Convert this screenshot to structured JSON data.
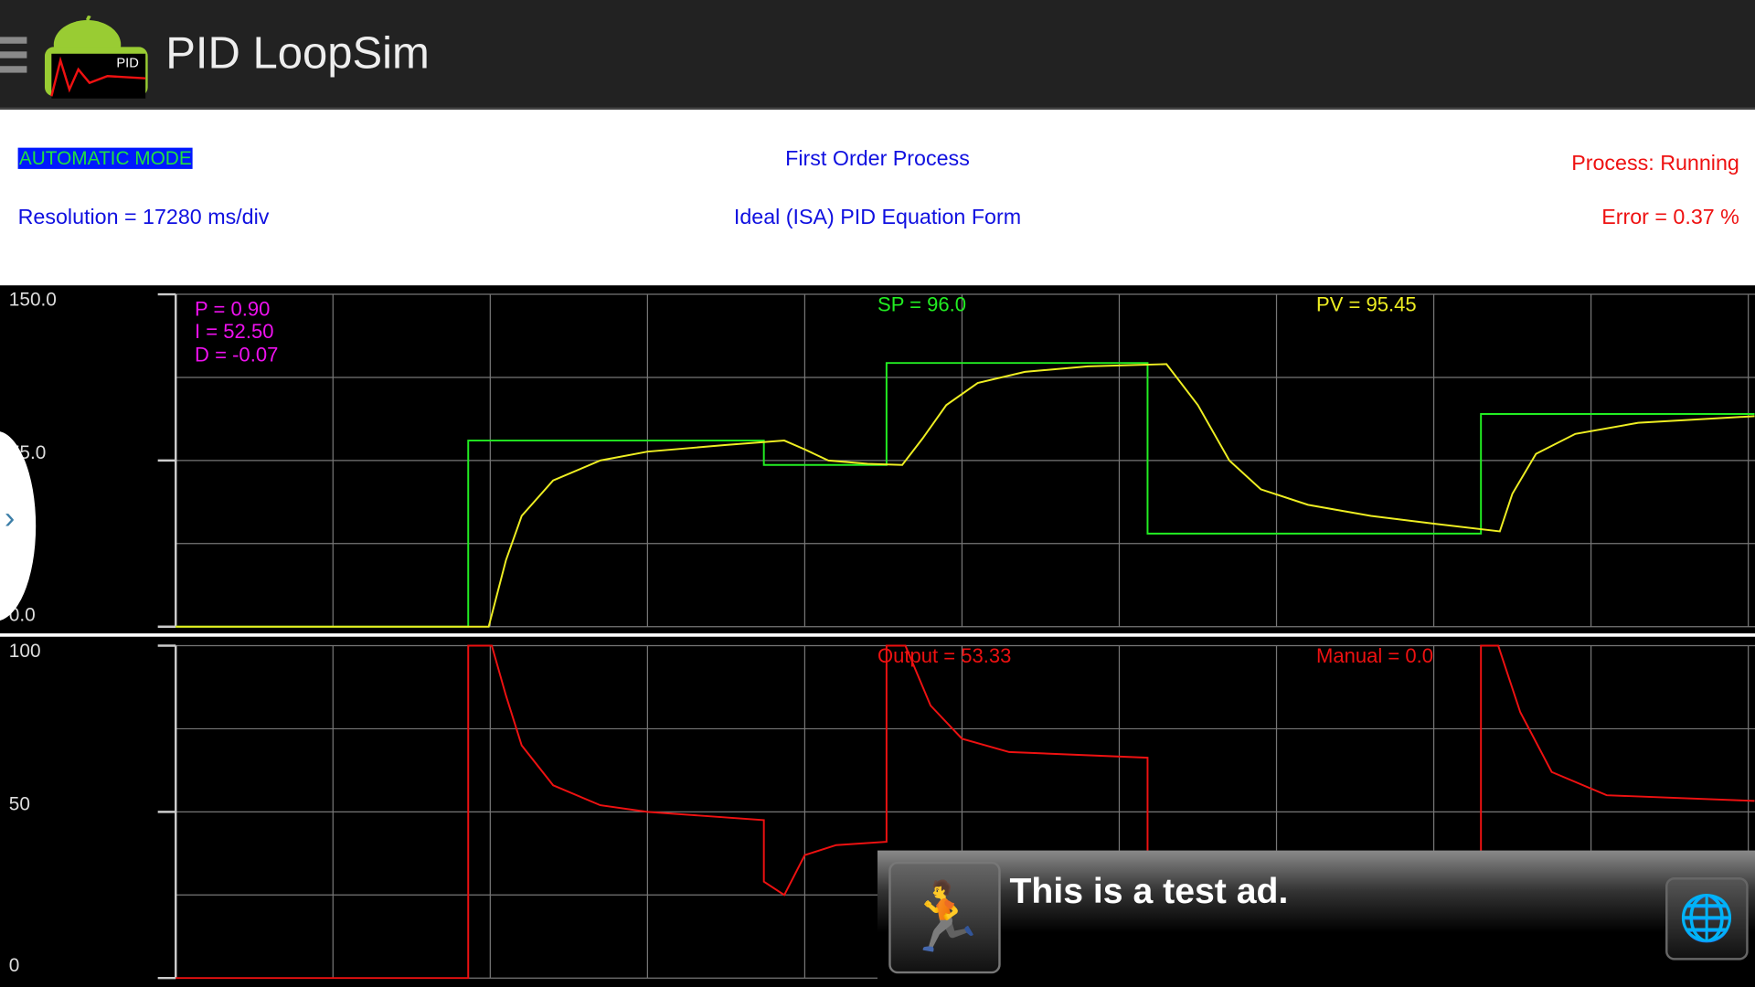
{
  "header": {
    "title": "PID LoopSim",
    "logo_text": "PID"
  },
  "info": {
    "mode": "AUTOMATIC MODE",
    "process_type": "First Order Process",
    "status": "Process: Running",
    "resolution": "Resolution = 17280 ms/div",
    "equation": "Ideal (ISA) PID Equation Form",
    "error": "Error = 0.37 %"
  },
  "tuning": {
    "p": "P = 0.90",
    "i": "I = 52.50",
    "d": "D = -0.07"
  },
  "readouts": {
    "sp": "SP = 96.0",
    "pv": "PV = 95.45",
    "output": "Output = 53.33",
    "manual": "Manual = 0.0"
  },
  "ad": {
    "text": "This is a test ad."
  },
  "colors": {
    "sp": "#22ee22",
    "pv": "#eeee22",
    "output": "#ee1111",
    "tuning": "#ee11ee",
    "grid": "#777777"
  },
  "chart_data": [
    {
      "type": "line",
      "ylim": [
        0,
        150
      ],
      "xlim": [
        0,
        10
      ],
      "x_divisions": 10,
      "y_ticks": [
        "150.0",
        "75.0",
        "0.0"
      ],
      "grid": true,
      "series": [
        {
          "name": "SP",
          "points": [
            [
              0,
              0
            ],
            [
              1.86,
              0
            ],
            [
              1.86,
              84
            ],
            [
              3.74,
              84
            ],
            [
              3.74,
              73
            ],
            [
              4.52,
              73
            ],
            [
              4.52,
              119
            ],
            [
              6.18,
              119
            ],
            [
              6.18,
              42
            ],
            [
              8.3,
              42
            ],
            [
              8.3,
              96
            ],
            [
              10.04,
              96
            ]
          ]
        },
        {
          "name": "PV",
          "points": [
            [
              0,
              0
            ],
            [
              1.99,
              0
            ],
            [
              2.1,
              30
            ],
            [
              2.2,
              50
            ],
            [
              2.4,
              66
            ],
            [
              2.7,
              75
            ],
            [
              3.0,
              79
            ],
            [
              3.5,
              82
            ],
            [
              3.87,
              84
            ],
            [
              4.0,
              80
            ],
            [
              4.15,
              75
            ],
            [
              4.4,
              73.5
            ],
            [
              4.62,
              73
            ],
            [
              4.75,
              85
            ],
            [
              4.9,
              100
            ],
            [
              5.1,
              110
            ],
            [
              5.4,
              115
            ],
            [
              5.8,
              117.5
            ],
            [
              6.3,
              118.5
            ],
            [
              6.5,
              100
            ],
            [
              6.7,
              75
            ],
            [
              6.9,
              62
            ],
            [
              7.2,
              55
            ],
            [
              7.6,
              50
            ],
            [
              8.0,
              46.5
            ],
            [
              8.42,
              43
            ],
            [
              8.5,
              60
            ],
            [
              8.65,
              78
            ],
            [
              8.9,
              87
            ],
            [
              9.3,
              92
            ],
            [
              10.04,
              95
            ]
          ]
        }
      ]
    },
    {
      "type": "line",
      "ylim": [
        0,
        100
      ],
      "xlim": [
        0,
        10
      ],
      "x_divisions": 10,
      "y_ticks": [
        "100",
        "50",
        "0"
      ],
      "grid": true,
      "series": [
        {
          "name": "Output",
          "points": [
            [
              0,
              0
            ],
            [
              1.86,
              0
            ],
            [
              1.86,
              100
            ],
            [
              2.01,
              100
            ],
            [
              2.1,
              85
            ],
            [
              2.2,
              70
            ],
            [
              2.4,
              58
            ],
            [
              2.7,
              52
            ],
            [
              3.0,
              50
            ],
            [
              3.74,
              47.5
            ],
            [
              3.74,
              29
            ],
            [
              3.87,
              25
            ],
            [
              4.0,
              37
            ],
            [
              4.2,
              40
            ],
            [
              4.52,
              41
            ],
            [
              4.52,
              100
            ],
            [
              4.64,
              100
            ],
            [
              4.8,
              82
            ],
            [
              5.0,
              72
            ],
            [
              5.3,
              68
            ],
            [
              6.18,
              66.3
            ],
            [
              6.18,
              0
            ],
            [
              8.3,
              0
            ],
            [
              8.3,
              100
            ],
            [
              8.41,
              100
            ],
            [
              8.55,
              80
            ],
            [
              8.75,
              62
            ],
            [
              9.1,
              55
            ],
            [
              10.04,
              53.3
            ]
          ]
        }
      ]
    }
  ]
}
